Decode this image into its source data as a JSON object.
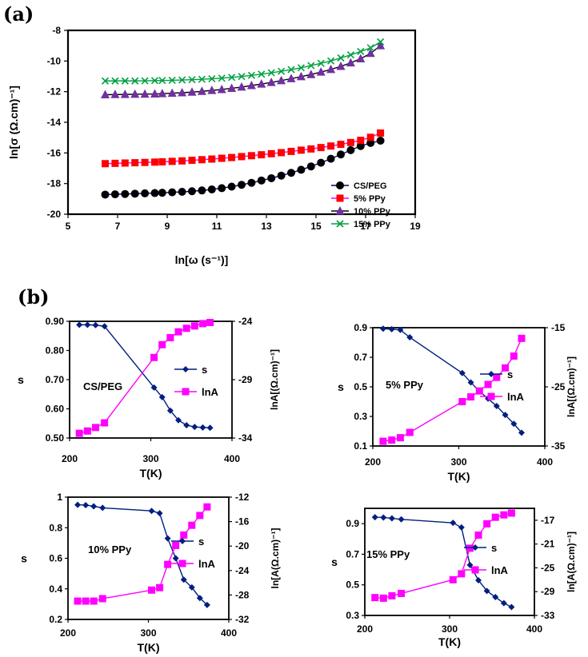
{
  "panel_labels": {
    "a": "(a)",
    "b": "(b)"
  },
  "chart_data": [
    {
      "type": "scatter",
      "panel": "(a)",
      "xlabel": "ln[ω (s⁻¹)]",
      "ylabel": "ln[σ (Ω.cm)⁻¹]",
      "xlim": [
        5,
        19
      ],
      "ylim": [
        -20,
        -8
      ],
      "xticks": [
        5,
        7,
        9,
        11,
        13,
        15,
        17,
        19
      ],
      "yticks": [
        -8,
        -10,
        -12,
        -14,
        -16,
        -18,
        -20
      ],
      "legend": "bottom-right",
      "series": [
        {
          "name": "CS/PEG",
          "color": "#000000",
          "line_color": "#00007f",
          "marker": "circle",
          "x": [
            6.5,
            6.9,
            7.3,
            7.7,
            8.1,
            8.5,
            8.8,
            9.2,
            9.6,
            10,
            10.4,
            10.8,
            11.2,
            11.6,
            12,
            12.4,
            12.8,
            13.2,
            13.6,
            14,
            14.4,
            14.8,
            15.2,
            15.6,
            16,
            16.4,
            16.8,
            17.2,
            17.6
          ],
          "y": [
            -18.72,
            -18.7,
            -18.68,
            -18.66,
            -18.64,
            -18.62,
            -18.6,
            -18.57,
            -18.54,
            -18.5,
            -18.45,
            -18.38,
            -18.3,
            -18.2,
            -18.08,
            -17.95,
            -17.8,
            -17.65,
            -17.48,
            -17.3,
            -17.1,
            -16.88,
            -16.64,
            -16.38,
            -16.1,
            -15.82,
            -15.55,
            -15.35,
            -15.2
          ]
        },
        {
          "name": "5% PPy",
          "color": "#ff0000",
          "line_color": "#ff00ff",
          "marker": "square",
          "x": [
            6.5,
            6.9,
            7.3,
            7.7,
            8.1,
            8.5,
            8.8,
            9.2,
            9.6,
            10,
            10.4,
            10.8,
            11.2,
            11.6,
            12,
            12.4,
            12.8,
            13.2,
            13.6,
            14,
            14.4,
            14.8,
            15.2,
            15.6,
            16,
            16.4,
            16.8,
            17.2,
            17.6
          ],
          "y": [
            -16.7,
            -16.68,
            -16.66,
            -16.64,
            -16.62,
            -16.6,
            -16.58,
            -16.55,
            -16.52,
            -16.48,
            -16.44,
            -16.4,
            -16.35,
            -16.3,
            -16.24,
            -16.18,
            -16.12,
            -16.05,
            -15.98,
            -15.9,
            -15.82,
            -15.74,
            -15.65,
            -15.55,
            -15.44,
            -15.32,
            -15.18,
            -14.98,
            -14.7
          ]
        },
        {
          "name": "10% PPy",
          "color": "#7030a0",
          "line_color": "#000000",
          "marker": "triangle",
          "x": [
            6.5,
            6.9,
            7.3,
            7.7,
            8.1,
            8.5,
            8.8,
            9.2,
            9.6,
            10,
            10.4,
            10.8,
            11.2,
            11.6,
            12,
            12.4,
            12.8,
            13.2,
            13.6,
            14,
            14.4,
            14.8,
            15.2,
            15.6,
            16,
            16.4,
            16.8,
            17.2,
            17.6
          ],
          "y": [
            -12.2,
            -12.19,
            -12.18,
            -12.17,
            -12.16,
            -12.15,
            -12.13,
            -12.1,
            -12.07,
            -12.03,
            -11.98,
            -11.92,
            -11.86,
            -11.78,
            -11.7,
            -11.6,
            -11.5,
            -11.4,
            -11.28,
            -11.15,
            -11.02,
            -10.88,
            -10.72,
            -10.55,
            -10.35,
            -10.12,
            -9.85,
            -9.5,
            -9.0
          ]
        },
        {
          "name": "15% PPy",
          "color": "#00a040",
          "line_color": "#00a040",
          "marker": "x",
          "x": [
            6.5,
            6.9,
            7.3,
            7.7,
            8.1,
            8.5,
            8.8,
            9.2,
            9.6,
            10,
            10.4,
            10.8,
            11.2,
            11.6,
            12,
            12.4,
            12.8,
            13.2,
            13.6,
            14,
            14.4,
            14.8,
            15.2,
            15.6,
            16,
            16.4,
            16.8,
            17.2,
            17.6
          ],
          "y": [
            -11.3,
            -11.3,
            -11.3,
            -11.3,
            -11.29,
            -11.28,
            -11.27,
            -11.26,
            -11.24,
            -11.22,
            -11.19,
            -11.16,
            -11.12,
            -11.07,
            -11.01,
            -10.94,
            -10.86,
            -10.77,
            -10.67,
            -10.56,
            -10.44,
            -10.3,
            -10.15,
            -9.99,
            -9.8,
            -9.6,
            -9.38,
            -9.14,
            -8.75
          ]
        }
      ]
    },
    {
      "type": "line",
      "panel": "(b)",
      "label": "CS/PEG",
      "xlabel": "T(K)",
      "ylabel": "s",
      "y2label": "lnA[(Ω.cm)⁻¹]",
      "xlim": [
        200,
        400
      ],
      "ylim": [
        0.5,
        0.9
      ],
      "y2lim": [
        -34,
        -24
      ],
      "xticks": [
        200,
        300,
        400
      ],
      "yticks": [
        "0.90",
        "0.80",
        "0.70",
        "0.60",
        "0.50"
      ],
      "y2ticks": [
        -24,
        -29,
        -34
      ],
      "legend": [
        "s",
        "lnA"
      ],
      "series": [
        {
          "name": "s",
          "axis": "left",
          "color": "#001f7f",
          "marker": "diamond",
          "x": [
            212,
            222,
            232,
            243,
            304,
            314,
            324,
            334,
            344,
            354,
            364,
            373
          ],
          "y": [
            0.888,
            0.888,
            0.887,
            0.883,
            0.673,
            0.64,
            0.594,
            0.561,
            0.544,
            0.538,
            0.536,
            0.535
          ]
        },
        {
          "name": "lnA",
          "axis": "right",
          "color": "#ff00ff",
          "marker": "square",
          "x": [
            212,
            222,
            232,
            243,
            304,
            314,
            324,
            334,
            344,
            354,
            364,
            373
          ],
          "y": [
            -33.6,
            -33.4,
            -33.1,
            -32.7,
            -27.1,
            -26.0,
            -25.4,
            -24.9,
            -24.6,
            -24.4,
            -24.2,
            -24.1
          ]
        }
      ]
    },
    {
      "type": "line",
      "panel": "(b)",
      "label": "5% PPy",
      "xlabel": "T(K)",
      "ylabel": "s",
      "y2label": "lnA[(Ω.cm)⁻¹]",
      "xlim": [
        200,
        400
      ],
      "ylim": [
        0.1,
        0.9
      ],
      "y2lim": [
        -35,
        -15
      ],
      "xticks": [
        200,
        300,
        400
      ],
      "yticks": [
        "0.9",
        "0.7",
        "0.5",
        "0.3",
        "0.1"
      ],
      "y2ticks": [
        -15,
        -25,
        -35
      ],
      "legend": [
        "s",
        "lnA"
      ],
      "series": [
        {
          "name": "s",
          "axis": "left",
          "color": "#001f7f",
          "marker": "diamond",
          "x": [
            212,
            222,
            232,
            243,
            304,
            314,
            324,
            334,
            344,
            354,
            364,
            373
          ],
          "y": [
            0.893,
            0.89,
            0.885,
            0.835,
            0.593,
            0.53,
            0.47,
            0.42,
            0.37,
            0.31,
            0.25,
            0.19
          ]
        },
        {
          "name": "lnA",
          "axis": "right",
          "color": "#ff00ff",
          "marker": "square",
          "x": [
            212,
            222,
            232,
            243,
            304,
            314,
            324,
            334,
            344,
            354,
            364,
            373
          ],
          "y": [
            -34.2,
            -34.0,
            -33.6,
            -32.7,
            -27.5,
            -26.7,
            -25.7,
            -24.6,
            -23.4,
            -21.8,
            -19.8,
            -16.8
          ]
        }
      ]
    },
    {
      "type": "line",
      "panel": "(b)",
      "label": "10% PPy",
      "xlabel": "T(K)",
      "ylabel": "s",
      "y2label": "ln[A(Ω.cm)⁻¹]",
      "xlim": [
        200,
        400
      ],
      "ylim": [
        0.2,
        1.0
      ],
      "y2lim": [
        -32,
        -12
      ],
      "xticks": [
        200,
        300,
        400
      ],
      "yticks": [
        "1",
        "0.8",
        "0.6",
        "0.4",
        "0.2"
      ],
      "y2ticks": [
        -12,
        -16,
        -20,
        -24,
        -28,
        -32
      ],
      "legend": [
        "s",
        "lnA"
      ],
      "series": [
        {
          "name": "s",
          "axis": "left",
          "color": "#001f7f",
          "marker": "diamond",
          "x": [
            212,
            222,
            232,
            243,
            304,
            314,
            324,
            334,
            344,
            354,
            364,
            373
          ],
          "y": [
            0.95,
            0.948,
            0.94,
            0.93,
            0.91,
            0.895,
            0.73,
            0.6,
            0.46,
            0.41,
            0.34,
            0.295
          ]
        },
        {
          "name": "lnA",
          "axis": "right",
          "color": "#ff00ff",
          "marker": "square",
          "x": [
            212,
            222,
            232,
            243,
            304,
            314,
            324,
            334,
            344,
            354,
            364,
            373
          ],
          "y": [
            -29.0,
            -29.0,
            -29.0,
            -28.6,
            -27.2,
            -26.8,
            -23.0,
            -19.9,
            -18.2,
            -16.6,
            -15.0,
            -13.6
          ]
        }
      ]
    },
    {
      "type": "line",
      "panel": "(b)",
      "label": "15% PPy",
      "xlabel": "T(K)",
      "ylabel": "s",
      "y2label": "ln[A(Ω.cm)⁻¹]",
      "xlim": [
        200,
        400
      ],
      "ylim": [
        0.3,
        1.0
      ],
      "y2lim": [
        -33,
        -15
      ],
      "xticks": [
        200,
        300,
        400
      ],
      "yticks": [
        "0.9",
        "0.7",
        "0.5",
        "0.3"
      ],
      "y2ticks": [
        -17,
        -21,
        -25,
        -29,
        -33
      ],
      "legend": [
        "s",
        "lnA"
      ],
      "series": [
        {
          "name": "s",
          "axis": "left",
          "color": "#001f7f",
          "marker": "diamond",
          "x": [
            212,
            222,
            232,
            243,
            304,
            314,
            324,
            334,
            344,
            354,
            364,
            373
          ],
          "y": [
            0.942,
            0.94,
            0.935,
            0.928,
            0.905,
            0.875,
            0.63,
            0.53,
            0.46,
            0.42,
            0.38,
            0.355
          ]
        },
        {
          "name": "lnA",
          "axis": "right",
          "color": "#ff00ff",
          "marker": "square",
          "x": [
            212,
            222,
            232,
            243,
            304,
            314,
            324,
            334,
            344,
            354,
            364,
            373
          ],
          "y": [
            -30.0,
            -30.1,
            -29.7,
            -29.3,
            -27.0,
            -26.0,
            -21.7,
            -19.5,
            -17.6,
            -16.5,
            -16.1,
            -15.8
          ]
        }
      ]
    }
  ]
}
